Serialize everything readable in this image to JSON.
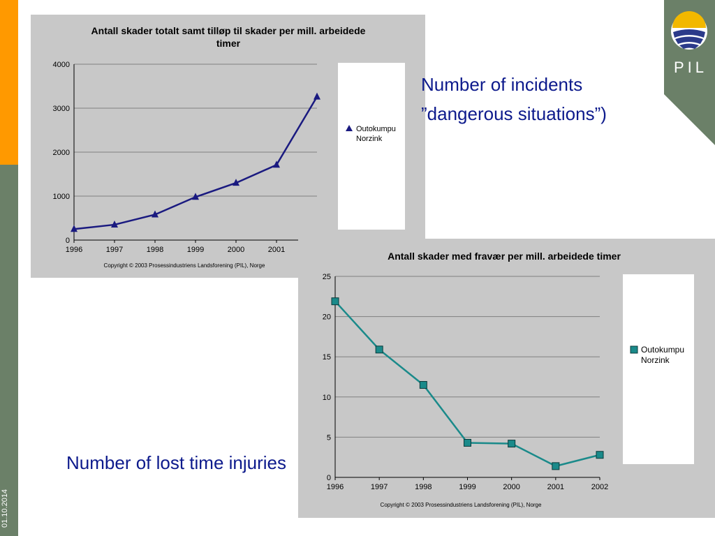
{
  "slide": {
    "date": "01.10.2014",
    "logo_text": "PIL",
    "label_incidents_line1": "Number of incidents",
    "label_incidents_line2": "”dangerous situations”)",
    "label_lost_time": "Number of lost time injuries",
    "colors": {
      "orange_bar": "#ff9900",
      "green_bar": "#6b8068",
      "text_blue": "#0d1a8c"
    }
  },
  "chart_data": [
    {
      "type": "line",
      "title": "Antall skader totalt samt tilløp til skader per mill. arbeidede timer",
      "title_lines": [
        "Antall skader totalt samt tilløp til skader per mill. arbeidede",
        "timer"
      ],
      "x": [
        "1996",
        "1997",
        "1998",
        "1999",
        "2000",
        "2001",
        "2002"
      ],
      "x_tick_labels": [
        "1996",
        "1997",
        "1998",
        "1999",
        "2000",
        "2001"
      ],
      "y_ticks": [
        0,
        1000,
        2000,
        3000,
        4000
      ],
      "ylim": [
        0,
        4000
      ],
      "series": [
        {
          "name": "Outokumpu Norzink",
          "legend_lines": [
            "Outokumpu",
            "Norzink"
          ],
          "marker": "triangle",
          "color": "#1a1a80",
          "values": [
            250,
            350,
            580,
            980,
            1300,
            1710,
            3260
          ]
        }
      ],
      "footer": "Copyright © 2003 Prosessindustriens Landsforening (PIL), Norge",
      "grid": true,
      "legend_position": "right"
    },
    {
      "type": "line",
      "title": "Antall skader med fravær per mill. arbeidede timer",
      "title_lines": [
        "Antall skader med fravær per mill. arbeidede timer"
      ],
      "x": [
        "1996",
        "1997",
        "1998",
        "1999",
        "2000",
        "2001",
        "2002"
      ],
      "x_tick_labels": [
        "1996",
        "1997",
        "1998",
        "1999",
        "2000",
        "2001",
        "2002"
      ],
      "y_ticks": [
        0,
        5,
        10,
        15,
        20,
        25
      ],
      "ylim": [
        0,
        25
      ],
      "series": [
        {
          "name": "Outokumpu Norzink",
          "legend_lines": [
            "Outokumpu",
            "Norzink"
          ],
          "marker": "square",
          "color": "#1a8a8a",
          "values": [
            21.9,
            15.9,
            11.5,
            4.3,
            4.2,
            1.4,
            2.8
          ]
        }
      ],
      "footer": "Copyright © 2003 Prosessindustriens Landsforening (PIL), Norge",
      "grid": true,
      "legend_position": "right"
    }
  ]
}
